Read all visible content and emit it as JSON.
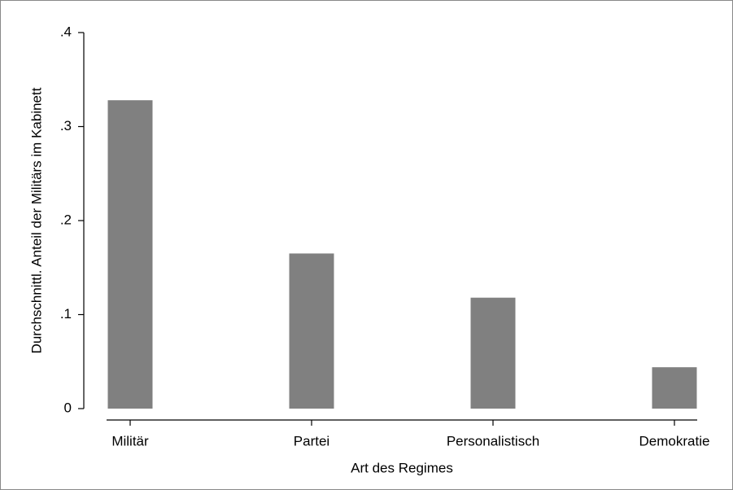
{
  "chart_data": {
    "type": "bar",
    "x_label": "Art des Regimes",
    "y_label": "Durchschnittl. Anteil der Militärs im Kabinett",
    "categories": [
      "Militär",
      "Partei",
      "Personalistisch",
      "Demokratie"
    ],
    "values": [
      0.328,
      0.165,
      0.118,
      0.044
    ],
    "color": "#808080",
    "ylim": [
      0,
      0.4
    ],
    "yticks": [
      0,
      {
        "value": 0.1,
        "label": ".1"
      },
      {
        "value": 0.2,
        "label": ".2"
      },
      {
        "value": 0.3,
        "label": ".3"
      },
      {
        "value": 0.4,
        "label": ".4"
      }
    ],
    "grid": false
  }
}
